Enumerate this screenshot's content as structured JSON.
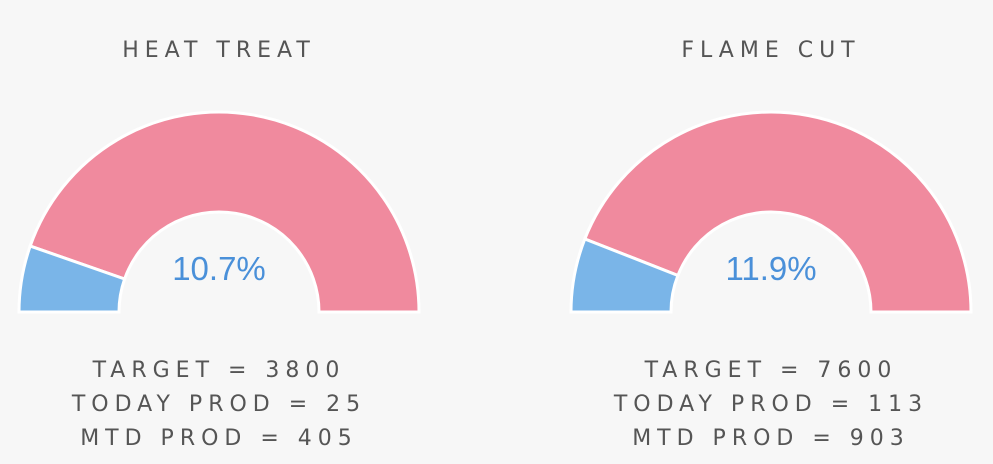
{
  "colors": {
    "background": "#f7f7f7",
    "filled": "#7ab5e8",
    "remaining": "#f08a9e",
    "percent_text": "#4a90d9",
    "label_text": "#555555"
  },
  "gauges": [
    {
      "title": "HEAT TREAT",
      "percent_label": "10.7%",
      "fraction": 0.107,
      "target_line": "TARGET = 3800",
      "today_line": "TODAY PROD = 25",
      "mtd_line": "MTD PROD = 405"
    },
    {
      "title": "FLAME CUT",
      "percent_label": "11.9%",
      "fraction": 0.119,
      "target_line": "TARGET = 7600",
      "today_line": "TODAY PROD = 113",
      "mtd_line": "MTD PROD = 903"
    }
  ]
}
